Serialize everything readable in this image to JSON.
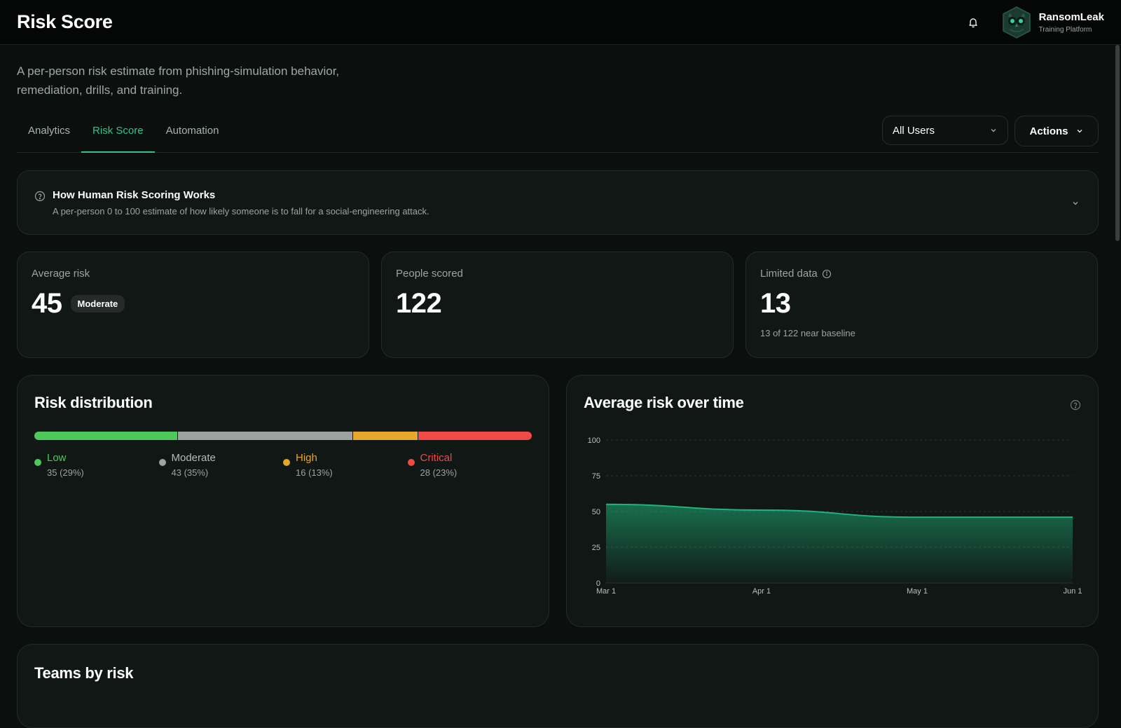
{
  "header": {
    "title": "Risk Score",
    "brand_name": "RansomLeak",
    "brand_sub": "Training Platform"
  },
  "intro": "A per-person risk estimate from phishing-simulation behavior, remediation, drills, and training.",
  "tabs": [
    {
      "label": "Analytics",
      "active": false
    },
    {
      "label": "Risk Score",
      "active": true
    },
    {
      "label": "Automation",
      "active": false
    }
  ],
  "filters": {
    "user_filter": "All Users",
    "actions_label": "Actions"
  },
  "info": {
    "title": "How Human Risk Scoring Works",
    "description": "A per-person 0 to 100 estimate of how likely someone is to fall for a social-engineering attack."
  },
  "stats": {
    "average": {
      "label": "Average risk",
      "value": "45",
      "badge": "Moderate"
    },
    "scored": {
      "label": "People scored",
      "value": "122"
    },
    "limited": {
      "label": "Limited data",
      "value": "13",
      "note": "13 of 122 near baseline"
    }
  },
  "distribution": {
    "title": "Risk distribution",
    "segments": [
      {
        "name": "Low",
        "count": 35,
        "text": "35 (29%)",
        "color": "#4cc95a"
      },
      {
        "name": "Moderate",
        "count": 43,
        "text": "43 (35%)",
        "color": "#9ea3a2"
      },
      {
        "name": "High",
        "count": 16,
        "text": "16 (13%)",
        "color": "#e5a82a"
      },
      {
        "name": "Critical",
        "count": 28,
        "text": "28 (23%)",
        "color": "#ef4a45"
      }
    ]
  },
  "trend": {
    "title": "Average risk over time"
  },
  "chart_data": {
    "type": "area",
    "title": "Average risk over time",
    "x": [
      "Mar 1",
      "Apr 1",
      "May 1",
      "Jun 1"
    ],
    "series": [
      {
        "values": [
          55,
          51,
          46,
          46
        ]
      }
    ],
    "ylim": [
      0,
      100
    ],
    "yticks": [
      0,
      25,
      50,
      75,
      100
    ],
    "grid": true,
    "color": "#1fb47d"
  },
  "teams": {
    "title": "Teams by risk"
  },
  "colors": {
    "accent": "#2fc48a",
    "background": "#0b0f0e",
    "card": "#111715"
  }
}
